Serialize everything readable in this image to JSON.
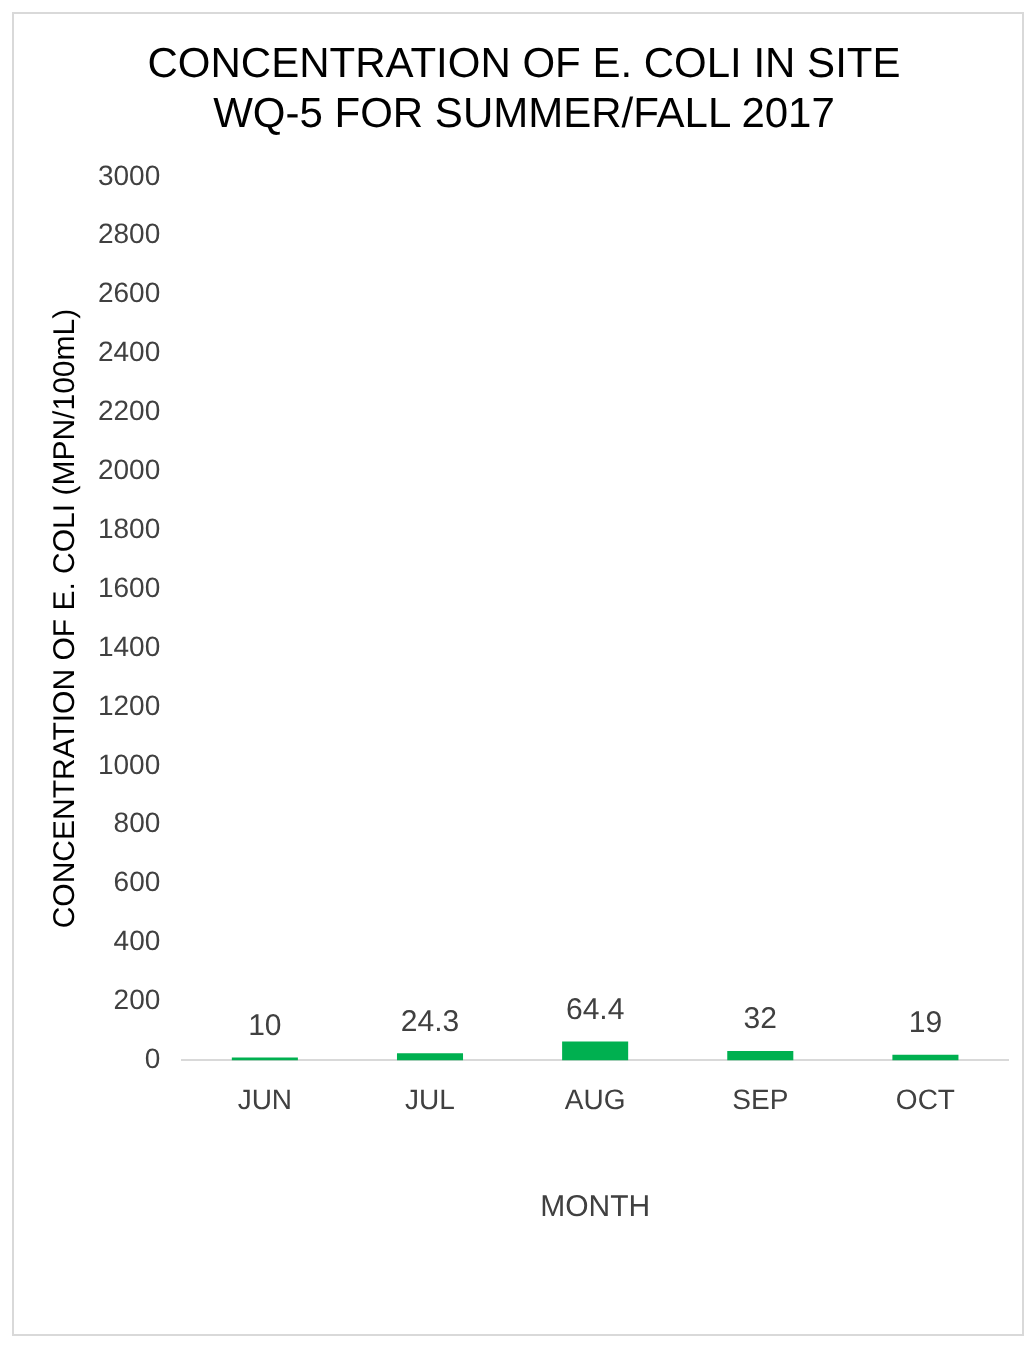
{
  "chart_data": {
    "type": "bar",
    "title": "CONCENTRATION OF E. COLI IN SITE WQ-5 FOR SUMMER/FALL 2017",
    "xlabel": "MONTH",
    "ylabel": "CONCENTRATION OF E. COLI (MPN/100mL)",
    "categories": [
      "JUN",
      "JUL",
      "AUG",
      "SEP",
      "OCT"
    ],
    "values": [
      10,
      24.3,
      64.4,
      32,
      19
    ],
    "color": "#00b050",
    "ylim": [
      0,
      3000
    ],
    "yticks": [
      0,
      200,
      400,
      600,
      800,
      1000,
      1200,
      1400,
      1600,
      1800,
      2000,
      2200,
      2400,
      2600,
      2800,
      3000
    ],
    "data_labels": true,
    "grid": false,
    "legend": false
  }
}
